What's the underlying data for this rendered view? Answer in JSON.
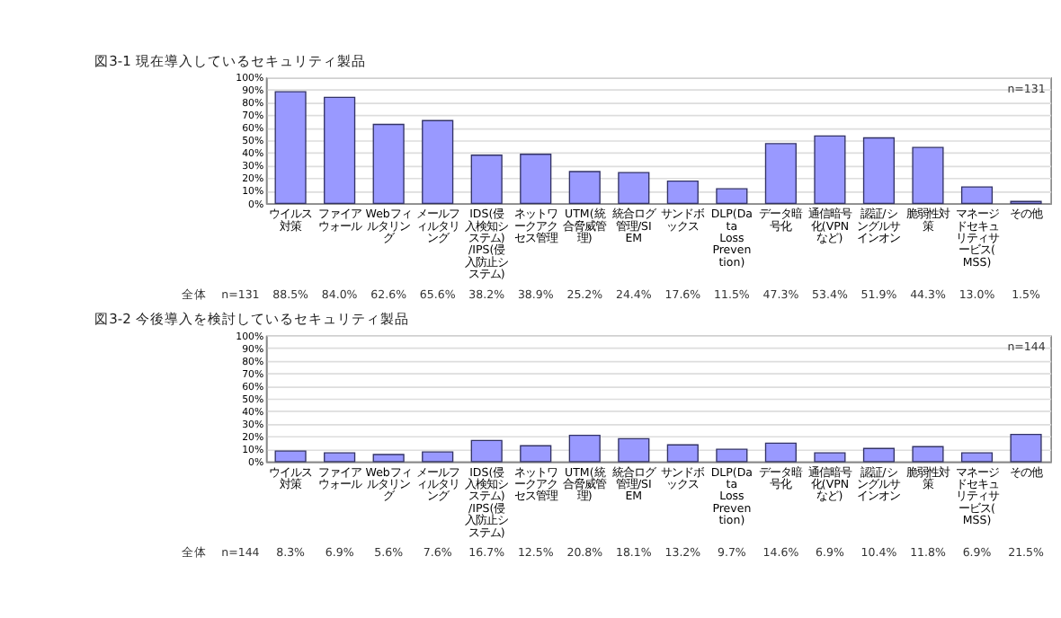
{
  "chart_data": [
    {
      "type": "bar",
      "title": "図3-1 現在導入しているセキュリティ製品",
      "categories": [
        "ウイルス対策",
        "ファイアウォール",
        "Webフィルタリング",
        "メールフィルタリング",
        "IDS(侵入検知システム)/IPS(侵入防止システム)",
        "ネットワークアクセス管理",
        "UTM(統合脅威管理)",
        "統合ログ管理/SIEM",
        "サンドボックス",
        "DLP(Data Loss Prevention)",
        "データ暗号化",
        "通信暗号化(VPNなど)",
        "認証/シングルサインオン",
        "脆弱性対策",
        "マネージドセキュリティサービス(MSS)",
        "その他"
      ],
      "values": [
        88.5,
        84.0,
        62.6,
        65.6,
        38.2,
        38.9,
        25.2,
        24.4,
        17.6,
        11.5,
        47.3,
        53.4,
        51.9,
        44.3,
        13.0,
        1.5
      ],
      "value_labels": [
        "88.5%",
        "84.0%",
        "62.6%",
        "65.6%",
        "38.2%",
        "38.9%",
        "25.2%",
        "24.4%",
        "17.6%",
        "11.5%",
        "47.3%",
        "53.4%",
        "51.9%",
        "44.3%",
        "13.0%",
        "1.5%"
      ],
      "color": "#9999ff",
      "ylim": [
        0,
        100
      ],
      "yticks": [
        {
          "value": 0,
          "label": "0%"
        },
        {
          "value": 10,
          "label": "10%"
        },
        {
          "value": 20,
          "label": "20%"
        },
        {
          "value": 30,
          "label": "30%"
        },
        {
          "value": 40,
          "label": "40%"
        },
        {
          "value": 50,
          "label": "50%"
        },
        {
          "value": 60,
          "label": "60%"
        },
        {
          "value": 70,
          "label": "70%"
        },
        {
          "value": 80,
          "label": "80%"
        },
        {
          "value": 90,
          "label": "90%"
        },
        {
          "value": 100,
          "label": "100%"
        }
      ],
      "grid": "y",
      "annotations": [
        "n=131",
        "全体",
        "n=131"
      ]
    },
    {
      "type": "bar",
      "title": "図3-2 今後導入を検討しているセキュリティ製品",
      "categories": [
        "ウイルス対策",
        "ファイアウォール",
        "Webフィルタリング",
        "メールフィルタリング",
        "IDS(侵入検知システム)/IPS(侵入防止システム)",
        "ネットワークアクセス管理",
        "UTM(統合脅威管理)",
        "統合ログ管理/SIEM",
        "サンドボックス",
        "DLP(Data Loss Prevention)",
        "データ暗号化",
        "通信暗号化(VPNなど)",
        "認証/シングルサインオン",
        "脆弱性対策",
        "マネージドセキュリティサービス(MSS)",
        "その他"
      ],
      "values": [
        8.3,
        6.9,
        5.6,
        7.6,
        16.7,
        12.5,
        20.8,
        18.1,
        13.2,
        9.7,
        14.6,
        6.9,
        10.4,
        11.8,
        6.9,
        21.5
      ],
      "value_labels": [
        "8.3%",
        "6.9%",
        "5.6%",
        "7.6%",
        "16.7%",
        "12.5%",
        "20.8%",
        "18.1%",
        "13.2%",
        "9.7%",
        "14.6%",
        "6.9%",
        "10.4%",
        "11.8%",
        "6.9%",
        "21.5%"
      ],
      "color": "#9999ff",
      "ylim": [
        0,
        100
      ],
      "yticks": [
        {
          "value": 0,
          "label": "0%"
        },
        {
          "value": 10,
          "label": "10%"
        },
        {
          "value": 20,
          "label": "20%"
        },
        {
          "value": 30,
          "label": "30%"
        },
        {
          "value": 40,
          "label": "40%"
        },
        {
          "value": 50,
          "label": "50%"
        },
        {
          "value": 60,
          "label": "60%"
        },
        {
          "value": 70,
          "label": "70%"
        },
        {
          "value": 80,
          "label": "80%"
        },
        {
          "value": 90,
          "label": "90%"
        },
        {
          "value": 100,
          "label": "100%"
        }
      ],
      "grid": "y",
      "annotations": [
        "n=144",
        "全体",
        "n=144"
      ]
    }
  ]
}
